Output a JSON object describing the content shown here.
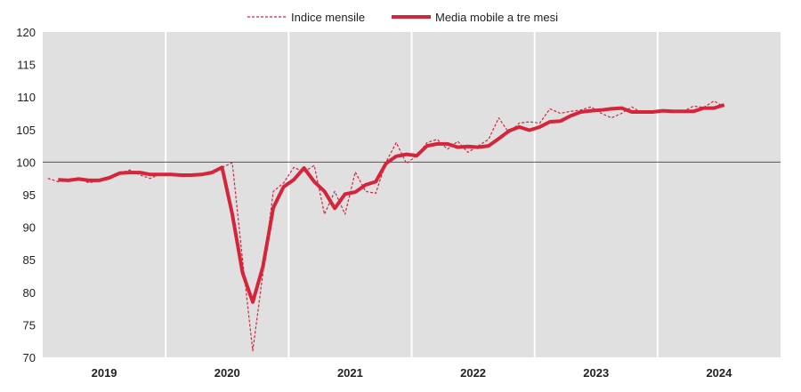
{
  "chart_data": {
    "type": "line",
    "title": "",
    "xlabel": "",
    "ylabel": "",
    "ylim": [
      70,
      120
    ],
    "yticks": [
      70,
      75,
      80,
      85,
      90,
      95,
      100,
      105,
      110,
      115,
      120
    ],
    "reference_line": 100,
    "grid": "vertical lines at year boundaries",
    "legend_position": "top-center",
    "years": [
      "2019",
      "2020",
      "2021",
      "2022",
      "2023",
      "2024"
    ],
    "colors": {
      "background": "#e0e0e0",
      "series": "#d6243a",
      "baseline": "#555555",
      "year_divider": "#ffffff"
    },
    "x": [
      "2019-01",
      "2019-02",
      "2019-03",
      "2019-04",
      "2019-05",
      "2019-06",
      "2019-07",
      "2019-08",
      "2019-09",
      "2019-10",
      "2019-11",
      "2019-12",
      "2020-01",
      "2020-02",
      "2020-03",
      "2020-04",
      "2020-05",
      "2020-06",
      "2020-07",
      "2020-08",
      "2020-09",
      "2020-10",
      "2020-11",
      "2020-12",
      "2021-01",
      "2021-02",
      "2021-03",
      "2021-04",
      "2021-05",
      "2021-06",
      "2021-07",
      "2021-08",
      "2021-09",
      "2021-10",
      "2021-11",
      "2021-12",
      "2022-01",
      "2022-02",
      "2022-03",
      "2022-04",
      "2022-05",
      "2022-06",
      "2022-07",
      "2022-08",
      "2022-09",
      "2022-10",
      "2022-11",
      "2022-12",
      "2023-01",
      "2023-02",
      "2023-03",
      "2023-04",
      "2023-05",
      "2023-06",
      "2023-07",
      "2023-08",
      "2023-09",
      "2023-10",
      "2023-11",
      "2023-12",
      "2024-01",
      "2024-02",
      "2024-03",
      "2024-04",
      "2024-05",
      "2024-06",
      "2024-07"
    ],
    "series": [
      {
        "name": "Indice mensile",
        "style": "dashed",
        "values": [
          97.5,
          97.0,
          97.3,
          97.6,
          96.8,
          97.2,
          97.8,
          98.3,
          98.8,
          98.0,
          97.5,
          98.2,
          98.3,
          98.1,
          98.0,
          98.1,
          98.6,
          99.2,
          99.9,
          85.0,
          71.0,
          83.0,
          95.5,
          96.8,
          99.2,
          98.5,
          99.5,
          92.0,
          95.5,
          92.0,
          98.5,
          95.5,
          95.2,
          100.0,
          103.0,
          99.8,
          101.0,
          103.0,
          103.5,
          102.0,
          103.2,
          101.5,
          102.5,
          103.5,
          106.8,
          104.5,
          106.0,
          106.2,
          106.0,
          108.2,
          107.5,
          107.8,
          108.0,
          108.5,
          107.5,
          106.8,
          107.5,
          108.5,
          107.5,
          107.8,
          107.8,
          107.8,
          107.8,
          108.6,
          108.4,
          109.4,
          108.5
        ]
      },
      {
        "name": "Media mobile a tre mesi",
        "style": "solid",
        "values": [
          null,
          97.3,
          97.2,
          97.4,
          97.2,
          97.2,
          97.6,
          98.3,
          98.4,
          98.4,
          98.1,
          98.1,
          98.1,
          98.0,
          98.0,
          98.1,
          98.4,
          99.2,
          92.0,
          83.0,
          78.5,
          84.0,
          93.0,
          96.2,
          97.3,
          99.1,
          97.0,
          95.5,
          92.9,
          95.1,
          95.4,
          96.5,
          97.0,
          99.8,
          100.9,
          101.2,
          101.0,
          102.5,
          102.8,
          102.8,
          102.3,
          102.4,
          102.3,
          102.5,
          103.6,
          104.8,
          105.4,
          104.9,
          105.4,
          106.2,
          106.3,
          107.1,
          107.7,
          107.9,
          108.0,
          108.2,
          108.3,
          107.7,
          107.7,
          107.7,
          107.9,
          107.8,
          107.8,
          107.8,
          108.3,
          108.3,
          108.8
        ]
      }
    ]
  }
}
